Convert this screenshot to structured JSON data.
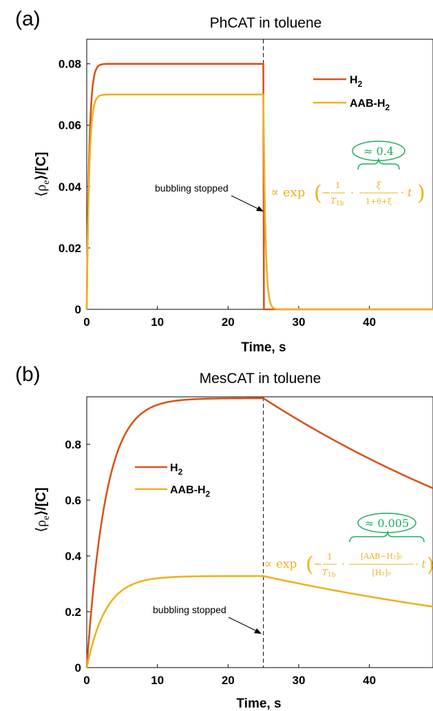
{
  "colors": {
    "h2": "#D95319",
    "aab": "#EDB120",
    "approx": "#1AAF5D",
    "axis": "#000000"
  },
  "ylabel_main": "⟨ρ",
  "ylabel_sub": "e",
  "ylabel_tail": "⟩/[C]",
  "chart_data": [
    {
      "type": "line",
      "panel": "(a)",
      "title": "PhCAT in toluene",
      "xlabel": "Time, s",
      "xlim": [
        0,
        49
      ],
      "ylim": [
        0,
        0.088
      ],
      "xticks": [
        0,
        10,
        20,
        30,
        40
      ],
      "yticks": [
        0,
        0.02,
        0.04,
        0.06,
        0.08
      ],
      "ytick_labels": [
        "0",
        "0.02",
        "0.04",
        "0.06",
        "0.08"
      ],
      "legend_position": "top-right",
      "bubbling_stop": 25,
      "series": [
        {
          "name": "H",
          "sub": "2",
          "plateau": 0.08,
          "tau_rise": 0.35,
          "tau_decay": 0.0
        },
        {
          "name": "AAB-H",
          "sub": "2",
          "plateau": 0.07,
          "tau_rise": 0.35,
          "tau_decay": 0.28
        }
      ],
      "annotation": "bubbling stopped",
      "approx_text": "≈ 0.4",
      "formula": {
        "prefix": "∝ exp",
        "lead": "−",
        "f1_num": "1",
        "f1_den": "T",
        "f1_den_sub": "1b",
        "dot": "·",
        "f2_num": "ξ",
        "f2_den": "1+θ+ξ",
        "tail": "· t"
      }
    },
    {
      "type": "line",
      "panel": "(b)",
      "title": "MesCAT in toluene",
      "xlabel": "Time, s",
      "xlim": [
        0,
        49
      ],
      "ylim": [
        0,
        0.97
      ],
      "xticks": [
        0,
        10,
        20,
        30,
        40
      ],
      "yticks": [
        0,
        0.2,
        0.4,
        0.6,
        0.8
      ],
      "ytick_labels": [
        "0",
        "0.2",
        "0.4",
        "0.6",
        "0.8"
      ],
      "legend_position": "center-left",
      "bubbling_stop": 25,
      "series": [
        {
          "name": "H",
          "sub": "2",
          "plateau": 0.965,
          "tau_rise": 2.7,
          "tau_decay": 59
        },
        {
          "name": "AAB-H",
          "sub": "2",
          "plateau": 0.328,
          "tau_rise": 2.7,
          "tau_decay": 59
        }
      ],
      "annotation": "bubbling stopped",
      "approx_text": "≈ 0.005",
      "formula": {
        "prefix": "∝ exp",
        "lead": "−",
        "f1_num": "1",
        "f1_den": "T",
        "f1_den_sub": "1b",
        "dot": "·",
        "f2_num": "[AAB−H₂]₀",
        "f2_den": "[H₂]₀",
        "tail": "· t"
      }
    }
  ]
}
